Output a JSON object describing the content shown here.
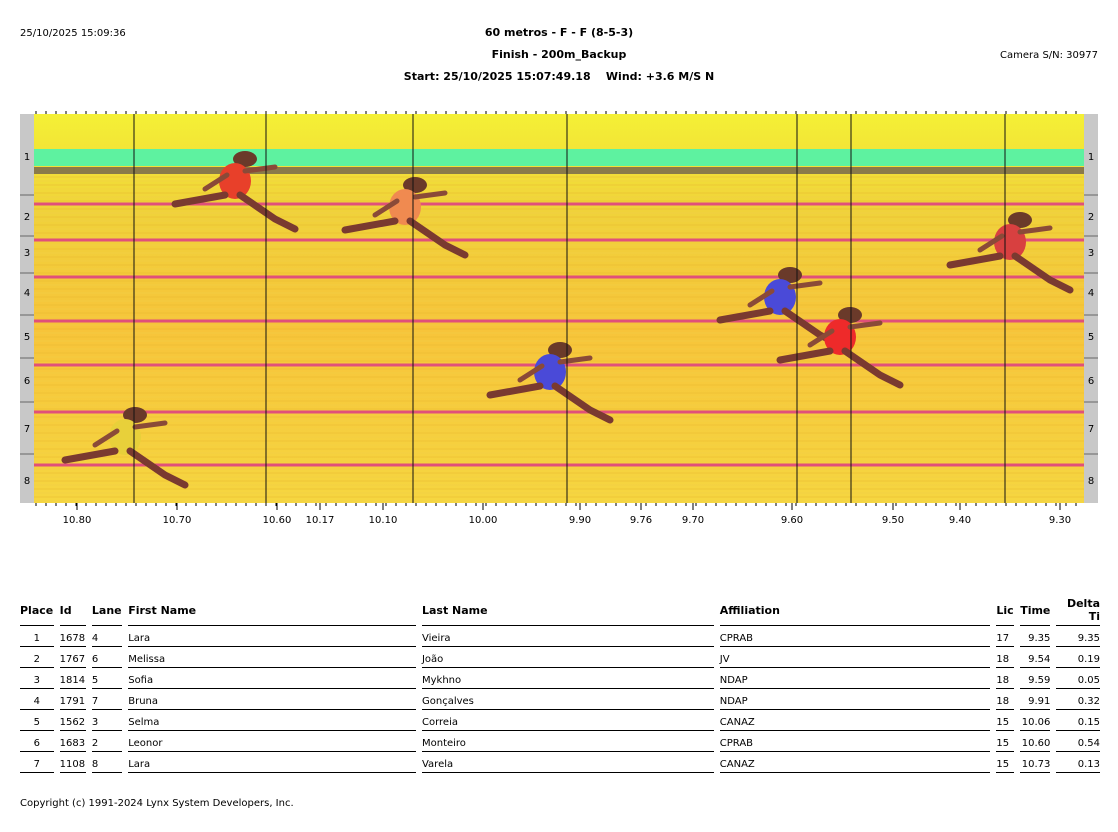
{
  "header": {
    "timestamp": "25/10/2025 15:09:36",
    "title": "60 metros - F - F (8-5-3)",
    "subtitle": "Finish - 200m_Backup",
    "start_wind": "Start: 25/10/2025 15:07:49.18    Wind: +3.6 M/S N",
    "camera": "Camera S/N: 30977"
  },
  "photo_finish": {
    "lane_labels": [
      "1",
      "2",
      "3",
      "4",
      "5",
      "6",
      "7",
      "8"
    ],
    "time_ticks": [
      "10.80",
      "10.70",
      "10.60",
      "10.17",
      "10.10",
      "10.00",
      "9.90",
      "9.76",
      "9.70",
      "9.60",
      "9.50",
      "9.40",
      "9.30"
    ],
    "colors": {
      "track_top": "#f4f035",
      "track_mid": "#f7c43a",
      "lane_line": "#e0507a",
      "green_band": "#5ef2a0"
    }
  },
  "results": {
    "columns": [
      "Place",
      "Id",
      "Lane",
      "First Name",
      "Last Name",
      "Affiliation",
      "Lic",
      "Time",
      "Delta Ti"
    ],
    "rows": [
      [
        "1",
        "1678",
        "4",
        "Lara",
        "Vieira",
        "CPRAB",
        "17",
        "9.35",
        "9.35"
      ],
      [
        "2",
        "1767",
        "6",
        "Melissa",
        "João",
        "JV",
        "18",
        "9.54",
        "0.19"
      ],
      [
        "3",
        "1814",
        "5",
        "Sofia",
        "Mykhno",
        "NDAP",
        "18",
        "9.59",
        "0.05"
      ],
      [
        "4",
        "1791",
        "7",
        "Bruna",
        "Gonçalves",
        "NDAP",
        "18",
        "9.91",
        "0.32"
      ],
      [
        "5",
        "1562",
        "3",
        "Selma",
        "Correia",
        "CANAZ",
        "15",
        "10.06",
        "0.15"
      ],
      [
        "6",
        "1683",
        "2",
        "Leonor",
        "Monteiro",
        "CPRAB",
        "15",
        "10.60",
        "0.54"
      ],
      [
        "7",
        "1108",
        "8",
        "Lara",
        "Varela",
        "CANAZ",
        "15",
        "10.73",
        "0.13"
      ]
    ]
  },
  "footer": {
    "copyright": "Copyright (c) 1991-2024 Lynx System Developers, Inc."
  }
}
